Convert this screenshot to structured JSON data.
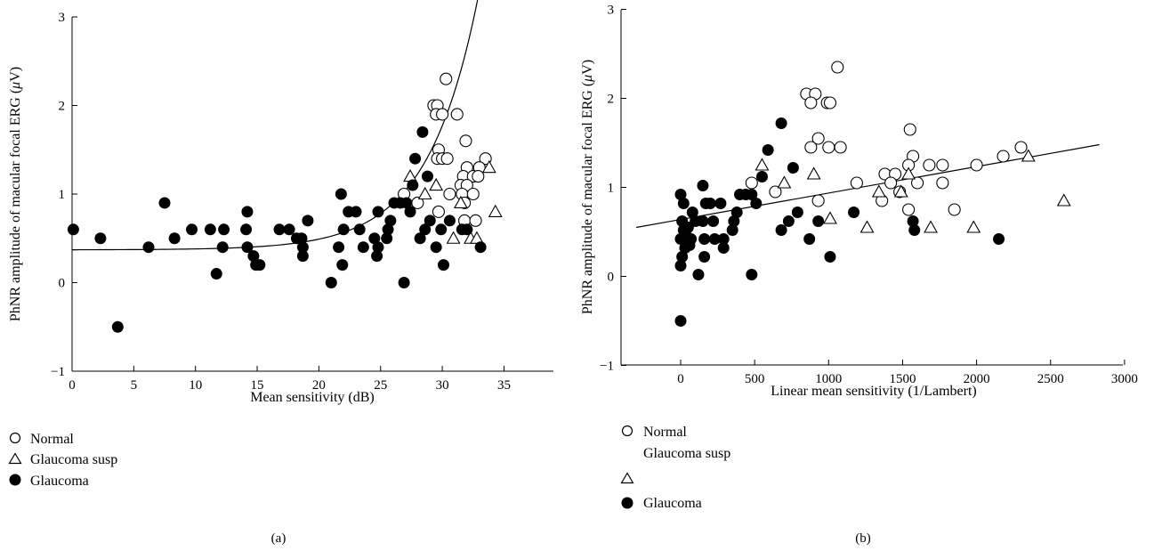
{
  "figure": {
    "legend_labels": [
      "Normal",
      "Glaucoma susp",
      "Glaucoma"
    ],
    "legend_markers": [
      "open-circle",
      "open-triangle",
      "filled-circle"
    ],
    "colors": {
      "ink": "#000000",
      "background": "#ffffff",
      "open_fill": "#ffffff",
      "filled": "#000000"
    }
  },
  "chart_data": [
    {
      "type": "scatter",
      "panel_label": "(a)",
      "xlabel": "Mean sensitivity (dB)",
      "ylabel": "PhNR amplitude of macular focal ERG (μV)",
      "xlim": [
        0,
        39
      ],
      "ylim": [
        -1,
        3
      ],
      "xticks": [
        0,
        5,
        10,
        15,
        20,
        25,
        30,
        35
      ],
      "yticks": [
        -1,
        0,
        1,
        2,
        3
      ],
      "grid": false,
      "legend_position": "below",
      "fit_curve": {
        "type": "exponential",
        "intercept": 0.37,
        "coefficient": 0.0009,
        "rate": 0.245,
        "x_range": [
          0,
          36.7
        ]
      },
      "series": [
        {
          "name": "Normal",
          "marker": "open-circle",
          "points": [
            [
              30.3,
              2.3
            ],
            [
              29.3,
              2.0
            ],
            [
              29.6,
              2.0
            ],
            [
              29.5,
              1.9
            ],
            [
              30.0,
              1.9
            ],
            [
              31.2,
              1.9
            ],
            [
              31.9,
              1.6
            ],
            [
              29.7,
              1.5
            ],
            [
              29.6,
              1.4
            ],
            [
              30.0,
              1.4
            ],
            [
              30.4,
              1.4
            ],
            [
              33.5,
              1.4
            ],
            [
              32.0,
              1.3
            ],
            [
              33.0,
              1.3
            ],
            [
              31.7,
              1.2
            ],
            [
              32.5,
              1.2
            ],
            [
              32.9,
              1.2
            ],
            [
              31.5,
              1.1
            ],
            [
              32.0,
              1.1
            ],
            [
              30.6,
              1.0
            ],
            [
              31.6,
              1.0
            ],
            [
              32.5,
              1.0
            ],
            [
              26.9,
              1.0
            ],
            [
              28.0,
              0.9
            ],
            [
              31.8,
              0.9
            ],
            [
              29.7,
              0.8
            ],
            [
              31.8,
              0.7
            ],
            [
              32.7,
              0.7
            ]
          ]
        },
        {
          "name": "Glaucoma susp",
          "marker": "open-triangle",
          "points": [
            [
              27.4,
              1.2
            ],
            [
              29.5,
              1.1
            ],
            [
              33.8,
              1.3
            ],
            [
              28.6,
              1.0
            ],
            [
              31.5,
              0.9
            ],
            [
              34.3,
              0.8
            ],
            [
              30.9,
              0.5
            ],
            [
              32.3,
              0.5
            ],
            [
              32.8,
              0.5
            ]
          ]
        },
        {
          "name": "Glaucoma",
          "marker": "filled-circle",
          "points": [
            [
              0.1,
              0.6
            ],
            [
              2.3,
              0.5
            ],
            [
              3.7,
              -0.5
            ],
            [
              6.2,
              0.4
            ],
            [
              7.5,
              0.9
            ],
            [
              8.3,
              0.5
            ],
            [
              9.7,
              0.6
            ],
            [
              11.2,
              0.6
            ],
            [
              11.7,
              0.1
            ],
            [
              12.3,
              0.6
            ],
            [
              12.2,
              0.4
            ],
            [
              14.2,
              0.8
            ],
            [
              14.1,
              0.6
            ],
            [
              14.2,
              0.4
            ],
            [
              14.7,
              0.3
            ],
            [
              14.9,
              0.2
            ],
            [
              15.2,
              0.2
            ],
            [
              16.8,
              0.6
            ],
            [
              17.6,
              0.6
            ],
            [
              18.2,
              0.5
            ],
            [
              18.6,
              0.5
            ],
            [
              18.7,
              0.4
            ],
            [
              18.7,
              0.3
            ],
            [
              19.1,
              0.7
            ],
            [
              21.0,
              0.0
            ],
            [
              21.6,
              0.4
            ],
            [
              21.8,
              1.0
            ],
            [
              21.9,
              0.2
            ],
            [
              22.0,
              0.6
            ],
            [
              22.4,
              0.8
            ],
            [
              23.0,
              0.8
            ],
            [
              23.3,
              0.6
            ],
            [
              23.6,
              0.4
            ],
            [
              24.5,
              0.5
            ],
            [
              24.8,
              0.4
            ],
            [
              24.7,
              0.3
            ],
            [
              24.8,
              0.8
            ],
            [
              25.5,
              0.5
            ],
            [
              25.6,
              0.6
            ],
            [
              25.8,
              0.7
            ],
            [
              26.1,
              0.9
            ],
            [
              26.6,
              0.9
            ],
            [
              26.9,
              0.0
            ],
            [
              27.1,
              0.9
            ],
            [
              27.4,
              0.8
            ],
            [
              27.6,
              1.1
            ],
            [
              27.8,
              1.4
            ],
            [
              28.2,
              0.5
            ],
            [
              28.4,
              1.7
            ],
            [
              28.6,
              0.6
            ],
            [
              28.8,
              1.2
            ],
            [
              29.0,
              0.7
            ],
            [
              29.5,
              0.4
            ],
            [
              29.9,
              0.6
            ],
            [
              30.1,
              0.2
            ],
            [
              30.6,
              0.7
            ],
            [
              31.6,
              0.6
            ],
            [
              32.0,
              0.6
            ],
            [
              33.1,
              0.4
            ]
          ]
        }
      ]
    },
    {
      "type": "scatter",
      "panel_label": "(b)",
      "xlabel": "Linear mean sensitivity (1/Lambert)",
      "ylabel": "PhNR amplitude of macular focal ERG (μV)",
      "xlim": [
        -300,
        3000
      ],
      "ylim": [
        -1,
        3
      ],
      "xticks": [
        0,
        500,
        1000,
        1500,
        2000,
        2500,
        3000
      ],
      "yticks": [
        -1,
        0,
        1,
        2,
        3
      ],
      "grid": false,
      "legend_position": "below",
      "fit_line": {
        "type": "linear",
        "x_range": [
          -300,
          2830
        ],
        "y_range": [
          0.55,
          1.48
        ]
      },
      "series": [
        {
          "name": "Normal",
          "marker": "open-circle",
          "points": [
            [
              1060,
              2.35
            ],
            [
              850,
              2.05
            ],
            [
              910,
              2.05
            ],
            [
              880,
              1.95
            ],
            [
              990,
              1.95
            ],
            [
              1010,
              1.95
            ],
            [
              1550,
              1.65
            ],
            [
              930,
              1.55
            ],
            [
              880,
              1.45
            ],
            [
              1000,
              1.45
            ],
            [
              1080,
              1.45
            ],
            [
              2300,
              1.45
            ],
            [
              1570,
              1.35
            ],
            [
              2180,
              1.35
            ],
            [
              1540,
              1.25
            ],
            [
              1680,
              1.25
            ],
            [
              1770,
              1.25
            ],
            [
              2000,
              1.25
            ],
            [
              1380,
              1.15
            ],
            [
              1450,
              1.15
            ],
            [
              1600,
              1.05
            ],
            [
              1190,
              1.05
            ],
            [
              1420,
              1.05
            ],
            [
              1770,
              1.05
            ],
            [
              480,
              1.05
            ],
            [
              640,
              0.95
            ],
            [
              1480,
              0.95
            ],
            [
              930,
              0.85
            ],
            [
              1360,
              0.85
            ],
            [
              1540,
              0.75
            ],
            [
              1850,
              0.75
            ]
          ]
        },
        {
          "name": "Glaucoma susp",
          "marker": "open-triangle",
          "points": [
            [
              550,
              1.25
            ],
            [
              700,
              1.05
            ],
            [
              900,
              1.15
            ],
            [
              2350,
              1.35
            ],
            [
              1340,
              0.95
            ],
            [
              1490,
              0.95
            ],
            [
              1540,
              1.15
            ],
            [
              1010,
              0.65
            ],
            [
              1260,
              0.55
            ],
            [
              1690,
              0.55
            ],
            [
              1980,
              0.55
            ],
            [
              2590,
              0.85
            ]
          ]
        },
        {
          "name": "Glaucoma",
          "marker": "filled-circle",
          "points": [
            [
              0,
              -0.5
            ],
            [
              0,
              0.92
            ],
            [
              10,
              0.62
            ],
            [
              20,
              0.52
            ],
            [
              0,
              0.42
            ],
            [
              30,
              0.32
            ],
            [
              10,
              0.22
            ],
            [
              0,
              0.12
            ],
            [
              20,
              0.82
            ],
            [
              40,
              0.45
            ],
            [
              60,
              0.35
            ],
            [
              50,
              0.55
            ],
            [
              80,
              0.72
            ],
            [
              70,
              0.42
            ],
            [
              100,
              0.62
            ],
            [
              120,
              0.02
            ],
            [
              150,
              1.02
            ],
            [
              170,
              0.82
            ],
            [
              150,
              0.62
            ],
            [
              160,
              0.42
            ],
            [
              160,
              0.22
            ],
            [
              200,
              0.82
            ],
            [
              220,
              0.62
            ],
            [
              230,
              0.42
            ],
            [
              270,
              0.82
            ],
            [
              290,
              0.42
            ],
            [
              290,
              0.32
            ],
            [
              350,
              0.52
            ],
            [
              360,
              0.62
            ],
            [
              380,
              0.72
            ],
            [
              400,
              0.92
            ],
            [
              440,
              0.92
            ],
            [
              480,
              0.02
            ],
            [
              480,
              0.92
            ],
            [
              510,
              0.82
            ],
            [
              550,
              1.12
            ],
            [
              590,
              1.42
            ],
            [
              680,
              1.72
            ],
            [
              680,
              0.52
            ],
            [
              730,
              0.62
            ],
            [
              760,
              1.22
            ],
            [
              790,
              0.72
            ],
            [
              870,
              0.42
            ],
            [
              930,
              0.62
            ],
            [
              1010,
              0.22
            ],
            [
              1170,
              0.72
            ],
            [
              1570,
              0.62
            ],
            [
              1580,
              0.52
            ],
            [
              2150,
              0.42
            ]
          ]
        }
      ]
    }
  ]
}
